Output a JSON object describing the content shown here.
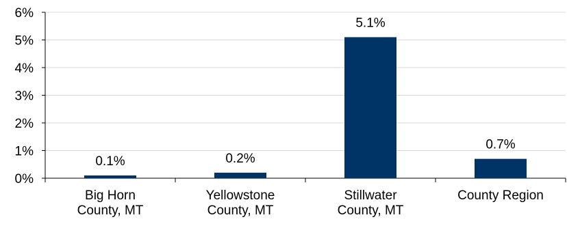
{
  "chart_data": {
    "type": "bar",
    "categories": [
      [
        "Big Horn",
        "County, MT"
      ],
      [
        "Yellowstone",
        "County, MT"
      ],
      [
        "Stillwater",
        "County, MT"
      ],
      [
        "County Region"
      ]
    ],
    "values": [
      0.1,
      0.2,
      5.1,
      0.7
    ],
    "data_labels": [
      "0.1%",
      "0.2%",
      "5.1%",
      "0.7%"
    ],
    "ylim": [
      0,
      6
    ],
    "yticks": [
      0,
      1,
      2,
      3,
      4,
      5,
      6
    ],
    "ytick_labels": [
      "0%",
      "1%",
      "2%",
      "3%",
      "4%",
      "5%",
      "6%"
    ],
    "grid": true,
    "legend": "none",
    "title": "",
    "xlabel": "",
    "ylabel": "",
    "bar_color": "#003366",
    "grid_color": "#d9d9d9",
    "axis_color": "#000000"
  }
}
